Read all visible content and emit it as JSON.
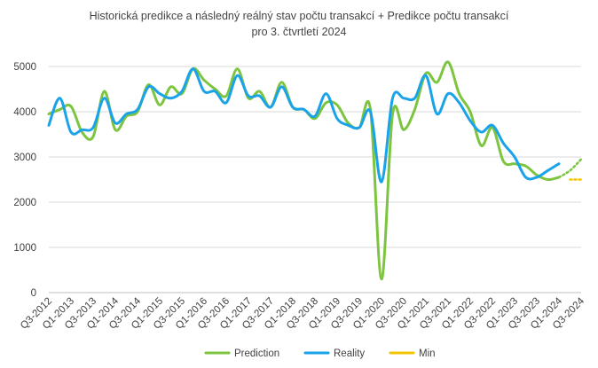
{
  "chart_data": {
    "type": "line",
    "title_line1": "Historická  predikce  a následný  reálný  stav  počtu  transakcí   + Predikce  počtu  transakcí",
    "title_line2": "pro 3. čtvrtletí 2024",
    "xlabel": "",
    "ylabel": "",
    "ylim": [
      0,
      5000
    ],
    "yticks": [
      0,
      1000,
      2000,
      3000,
      4000,
      5000
    ],
    "grid": true,
    "legend_position": "bottom",
    "x_tick_labels": [
      "Q3-2012",
      "Q1-2013",
      "Q3-2013",
      "Q1-2014",
      "Q3-2014",
      "Q1-2015",
      "Q3-2015",
      "Q1-2016",
      "Q3-2016",
      "Q1-2017",
      "Q3-2017",
      "Q1-2018",
      "Q3-2018",
      "Q1-2019",
      "Q3-2019",
      "Q1-2020",
      "Q3-2020",
      "Q1-2021",
      "Q3-2021",
      "Q1-2022",
      "Q3-2022",
      "Q1-2023",
      "Q3-2023",
      "Q1-2024",
      "Q3-2024"
    ],
    "categories": [
      "Q3-2012",
      "Q4-2012",
      "Q1-2013",
      "Q2-2013",
      "Q3-2013",
      "Q4-2013",
      "Q1-2014",
      "Q2-2014",
      "Q3-2014",
      "Q4-2014",
      "Q1-2015",
      "Q2-2015",
      "Q3-2015",
      "Q4-2015",
      "Q1-2016",
      "Q2-2016",
      "Q3-2016",
      "Q4-2016",
      "Q1-2017",
      "Q2-2017",
      "Q3-2017",
      "Q4-2017",
      "Q1-2018",
      "Q2-2018",
      "Q3-2018",
      "Q4-2018",
      "Q1-2019",
      "Q2-2019",
      "Q3-2019",
      "Q4-2019",
      "Q1-2020",
      "Q2-2020",
      "Q3-2020",
      "Q4-2020",
      "Q1-2021",
      "Q2-2021",
      "Q3-2021",
      "Q4-2021",
      "Q1-2022",
      "Q2-2022",
      "Q3-2022",
      "Q4-2022",
      "Q1-2023",
      "Q2-2023",
      "Q3-2023",
      "Q4-2023",
      "Q1-2024",
      "Q2-2024",
      "Q3-2024"
    ],
    "series": [
      {
        "name": "Prediction",
        "color": "#7dc540",
        "values": [
          3950,
          4050,
          4120,
          3550,
          3450,
          4450,
          3600,
          3900,
          4000,
          4600,
          4150,
          4550,
          4400,
          4950,
          4700,
          4500,
          4350,
          4950,
          4300,
          4450,
          4100,
          4650,
          4100,
          4050,
          3850,
          4200,
          4150,
          3750,
          3650,
          4050,
          300,
          3950,
          3600,
          4050,
          4850,
          4650,
          5100,
          4400,
          4000,
          3250,
          3650,
          2900,
          2850,
          2800,
          2600,
          2500,
          2550,
          null,
          null
        ],
        "projection": {
          "from_index": 46,
          "values": [
            2550,
            2700,
            2950
          ],
          "dotted": true
        }
      },
      {
        "name": "Reality",
        "color": "#1aa3e8",
        "values": [
          3700,
          4300,
          3550,
          3600,
          3650,
          4300,
          3750,
          3950,
          4050,
          4550,
          4400,
          4300,
          4450,
          4950,
          4450,
          4450,
          4200,
          4800,
          4350,
          4350,
          4100,
          4550,
          4100,
          4050,
          3900,
          4400,
          3850,
          3700,
          3650,
          4000,
          2450,
          4300,
          4300,
          4300,
          4800,
          3950,
          4400,
          4200,
          3800,
          3550,
          3700,
          3300,
          3000,
          2550,
          2550,
          2700,
          2850,
          null,
          null
        ]
      },
      {
        "name": "Min",
        "color": "#f5c400",
        "values": [
          null,
          null,
          null,
          null,
          null,
          null,
          null,
          null,
          null,
          null,
          null,
          null,
          null,
          null,
          null,
          null,
          null,
          null,
          null,
          null,
          null,
          null,
          null,
          null,
          null,
          null,
          null,
          null,
          null,
          null,
          null,
          null,
          null,
          null,
          null,
          null,
          null,
          null,
          null,
          null,
          null,
          null,
          null,
          null,
          null,
          null,
          null,
          2500,
          2500
        ],
        "dotted": true
      }
    ]
  }
}
